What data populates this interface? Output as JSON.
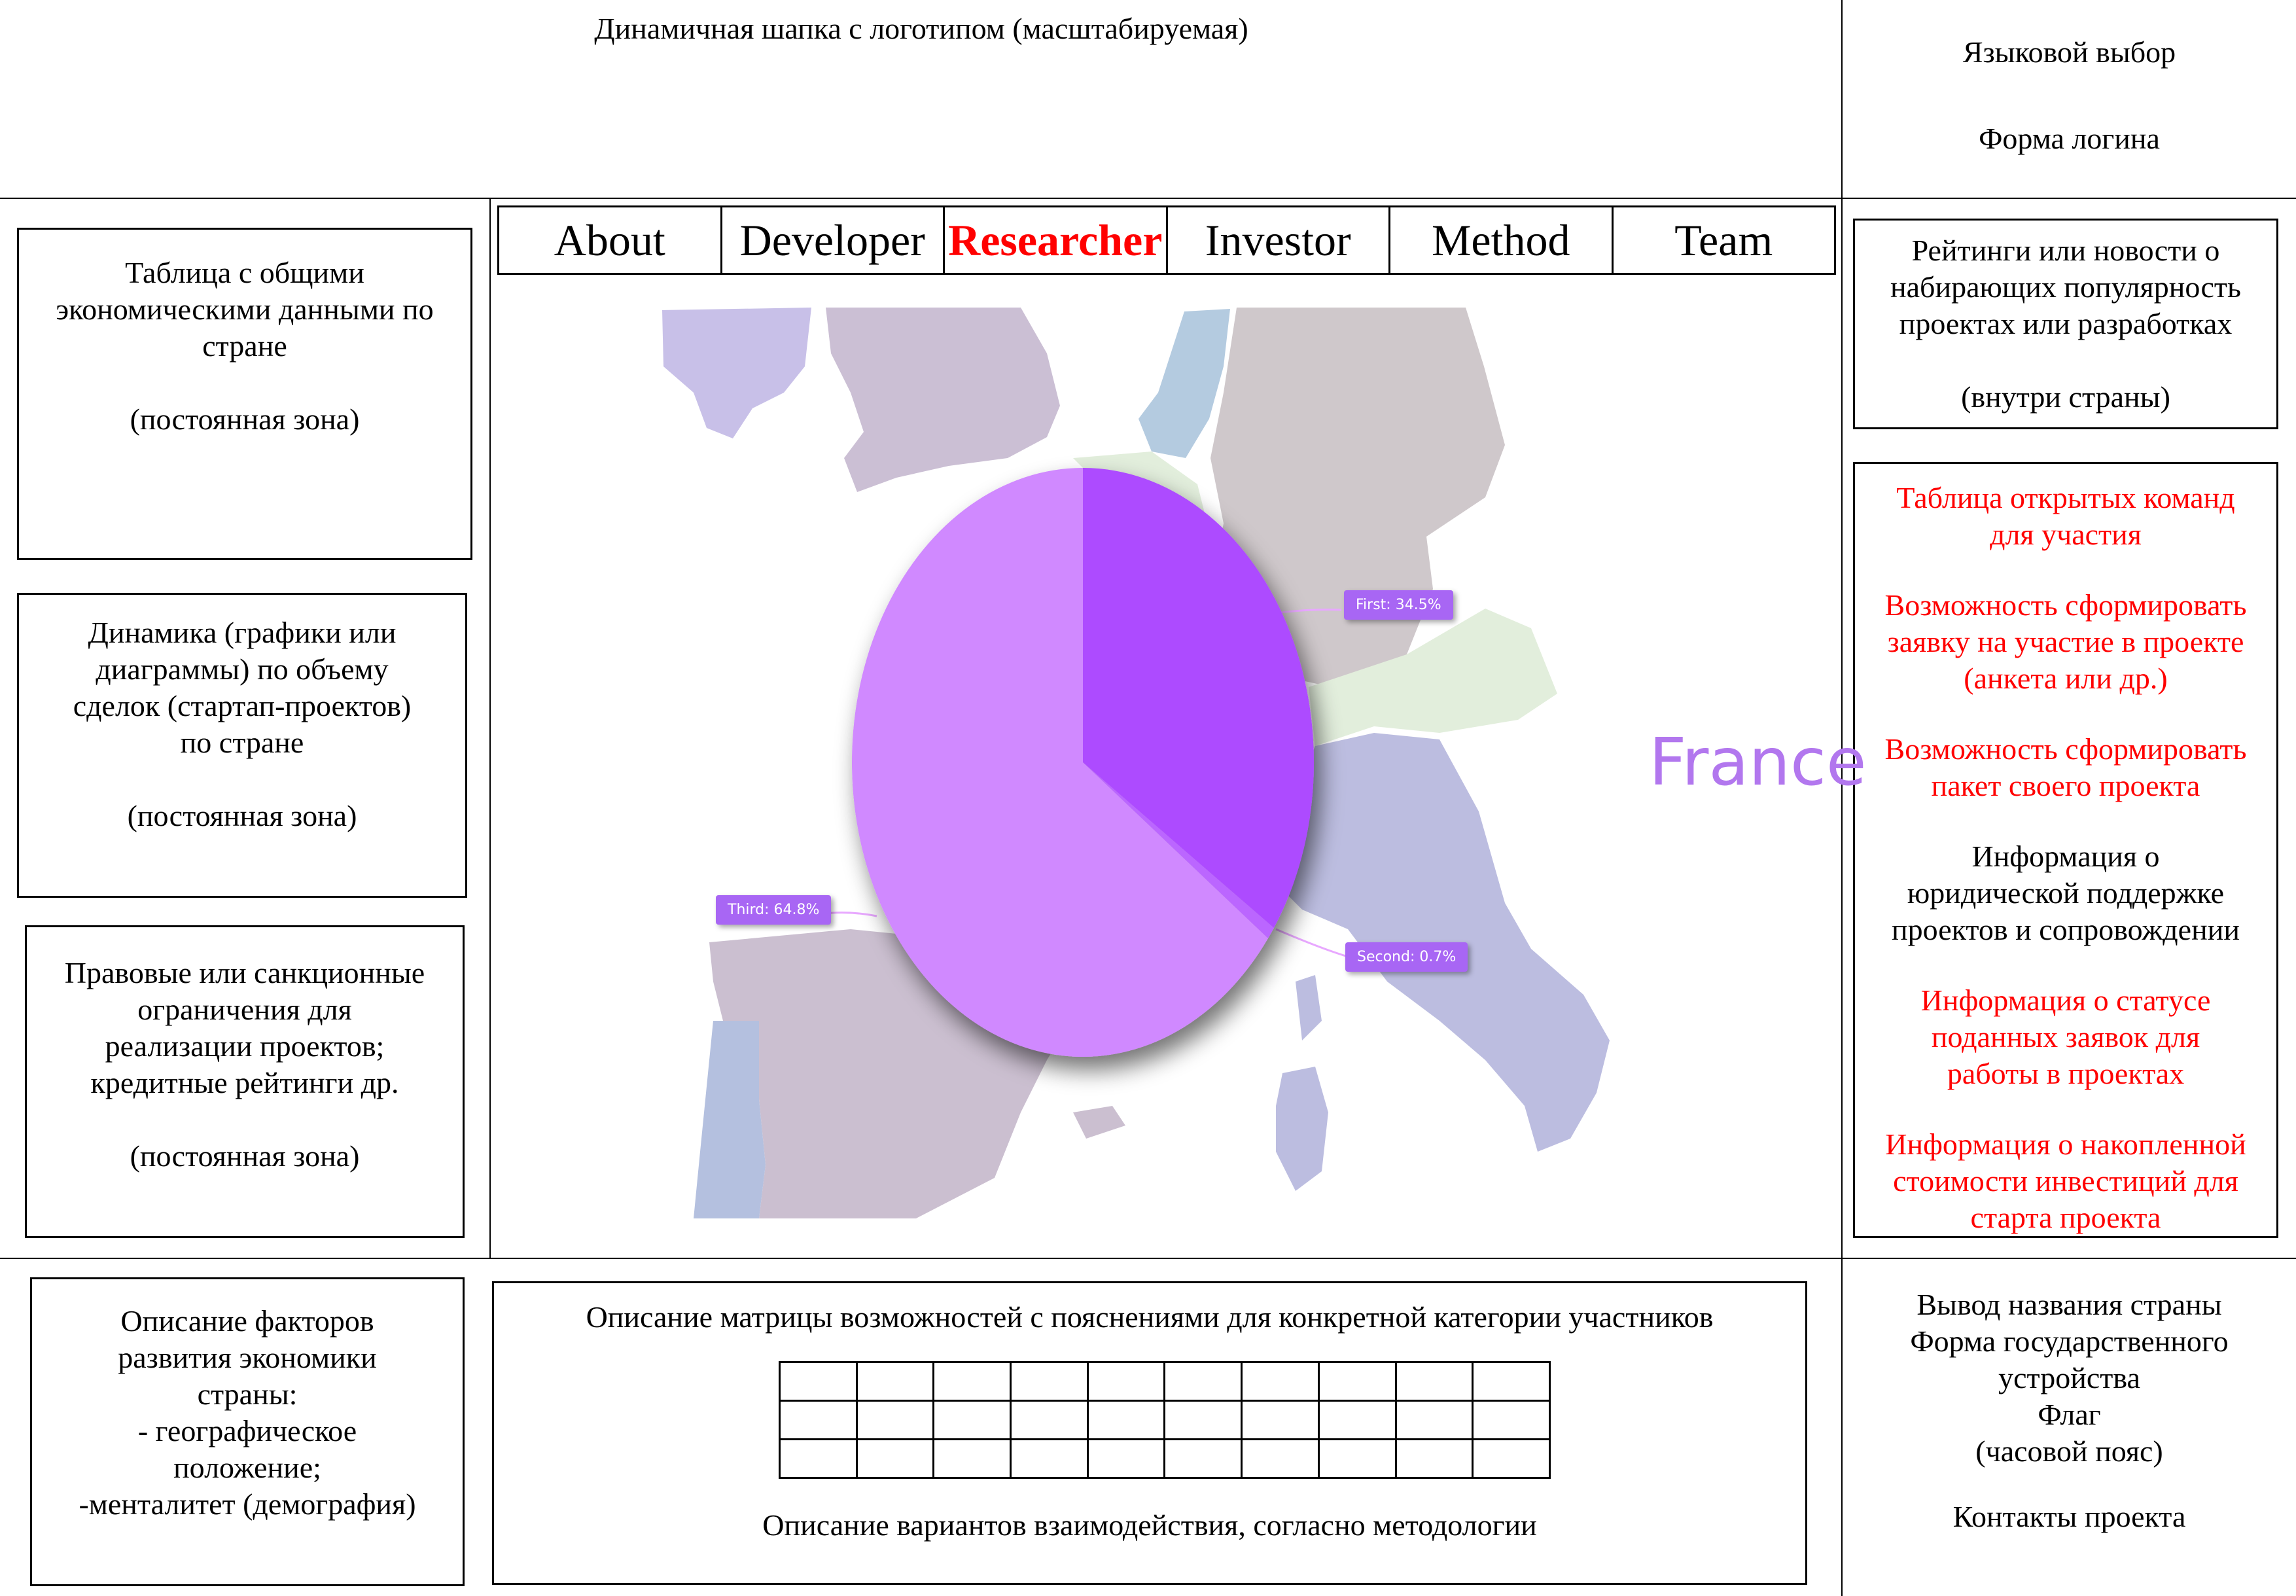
{
  "header": {
    "title": "Динамичная шапка с логотипом (масштабируемая)",
    "language_select": "Языковой выбор",
    "login_form": "Форма логина"
  },
  "nav": {
    "items": [
      {
        "label": "About"
      },
      {
        "label": "Developer"
      },
      {
        "label": "Researcher",
        "active": true
      },
      {
        "label": "Investor"
      },
      {
        "label": "Method"
      },
      {
        "label": "Team"
      }
    ]
  },
  "left": {
    "box1": "Таблица с общими\nэкономическими данными по\nстране\n\n(постоянная зона)",
    "box2": "Динамика (графики или\nдиаграммы) по объему\nсделок (стартап-проектов)\nпо стране\n\n(постоянная зона)",
    "box3": "Правовые или санкционные\nограничения для\nреализации проектов;\nкредитные рейтинги др.\n\n(постоянная зона)",
    "box4": "Описание факторов\nразвития экономики\nстраны:\n- географическое\nположение;\n-менталитет (демография)"
  },
  "right": {
    "ratings": "Рейтинги или новости о\nнабирающих популярность\nпроектах или разработках\n\n(внутри страны)",
    "items": [
      {
        "text": "Таблица открытых команд\nдля участия",
        "red": true
      },
      {
        "text": "Возможность сформировать\nзаявку на участие в проекте\n(анкета или др.)",
        "red": true
      },
      {
        "text": "Возможность сформировать\nпакет своего проекта",
        "red": true
      },
      {
        "text": "Информация о\nюридической поддержке\nпроектов и сопровождении",
        "red": false
      },
      {
        "text": "Информация о статусе\nподанных заявок для\nработы в проектах",
        "red": true
      },
      {
        "text": "Информация о накопленной\nстоимости инвестиций для\nстарта проекта",
        "red": true
      }
    ],
    "country_info": "Вывод названия страны\nФорма государственного\nустройства\nФлаг\n(часовой пояс)",
    "contacts": "Контакты проекта"
  },
  "center_bottom": {
    "matrix_title": "Описание матрицы возможностей с пояснениями для конкретной категории участников",
    "matrix_rows": 3,
    "matrix_cols": 10,
    "interaction_desc": "Описание вариантов взаимодействия, согласно методологии"
  },
  "map": {
    "country": "France",
    "colors": {
      "slice_main": "#d089ff",
      "slice_first": "#ad4cff",
      "slice_second": "#bb66ff"
    }
  },
  "chart_data": {
    "type": "pie",
    "slices": [
      {
        "label": "First",
        "value": 34.5,
        "text": "First: 34.5%"
      },
      {
        "label": "Second",
        "value": 0.7,
        "text": "Second: 0.7%"
      },
      {
        "label": "Third",
        "value": 64.8,
        "text": "Third: 64.8%"
      }
    ]
  }
}
